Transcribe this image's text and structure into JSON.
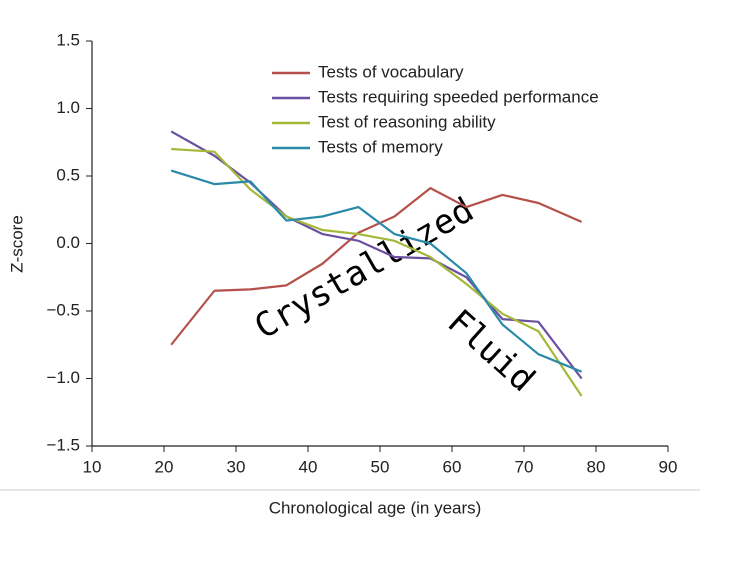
{
  "chart_data": {
    "type": "line",
    "x_label": "Chronological age (in years)",
    "y_label": "Z-score",
    "x": [
      21,
      27,
      32,
      37,
      42,
      47,
      52,
      57,
      62,
      67,
      72,
      78
    ],
    "series": [
      {
        "name": "Tests of vocabulary",
        "color": "#b5504a",
        "values": [
          -0.75,
          -0.35,
          -0.34,
          -0.31,
          -0.15,
          0.08,
          0.2,
          0.41,
          0.27,
          0.36,
          0.3,
          0.16
        ]
      },
      {
        "name": "Tests requiring speeded performance",
        "color": "#6b4fa0",
        "values": [
          0.83,
          0.65,
          0.45,
          0.2,
          0.07,
          0.02,
          -0.1,
          -0.11,
          -0.25,
          -0.56,
          -0.58,
          -1.0
        ]
      },
      {
        "name": "Test of reasoning ability",
        "color": "#a5b83a",
        "values": [
          0.7,
          0.68,
          0.4,
          0.2,
          0.1,
          0.07,
          0.02,
          -0.1,
          -0.3,
          -0.52,
          -0.65,
          -1.13
        ]
      },
      {
        "name": "Tests of memory",
        "color": "#2a8aa8",
        "values": [
          0.54,
          0.44,
          0.46,
          0.17,
          0.2,
          0.27,
          0.07,
          0.0,
          -0.22,
          -0.6,
          -0.82,
          -0.95
        ]
      }
    ],
    "xlim": [
      10,
      90
    ],
    "xticks": [
      10,
      20,
      30,
      40,
      50,
      60,
      70,
      80,
      90
    ],
    "ylim": [
      -1.5,
      1.5
    ],
    "yticks": [
      {
        "value": -1.5,
        "label": "−1.5"
      },
      {
        "value": -1.0,
        "label": "−1.0"
      },
      {
        "value": -0.5,
        "label": "−0.5"
      },
      {
        "value": 0,
        "label": "0.0"
      },
      0.5,
      {
        "value": 1.0,
        "label": "1.0"
      },
      1.5
    ],
    "annotations": [
      "Crystallized",
      "Fluid"
    ],
    "legend": "top"
  }
}
